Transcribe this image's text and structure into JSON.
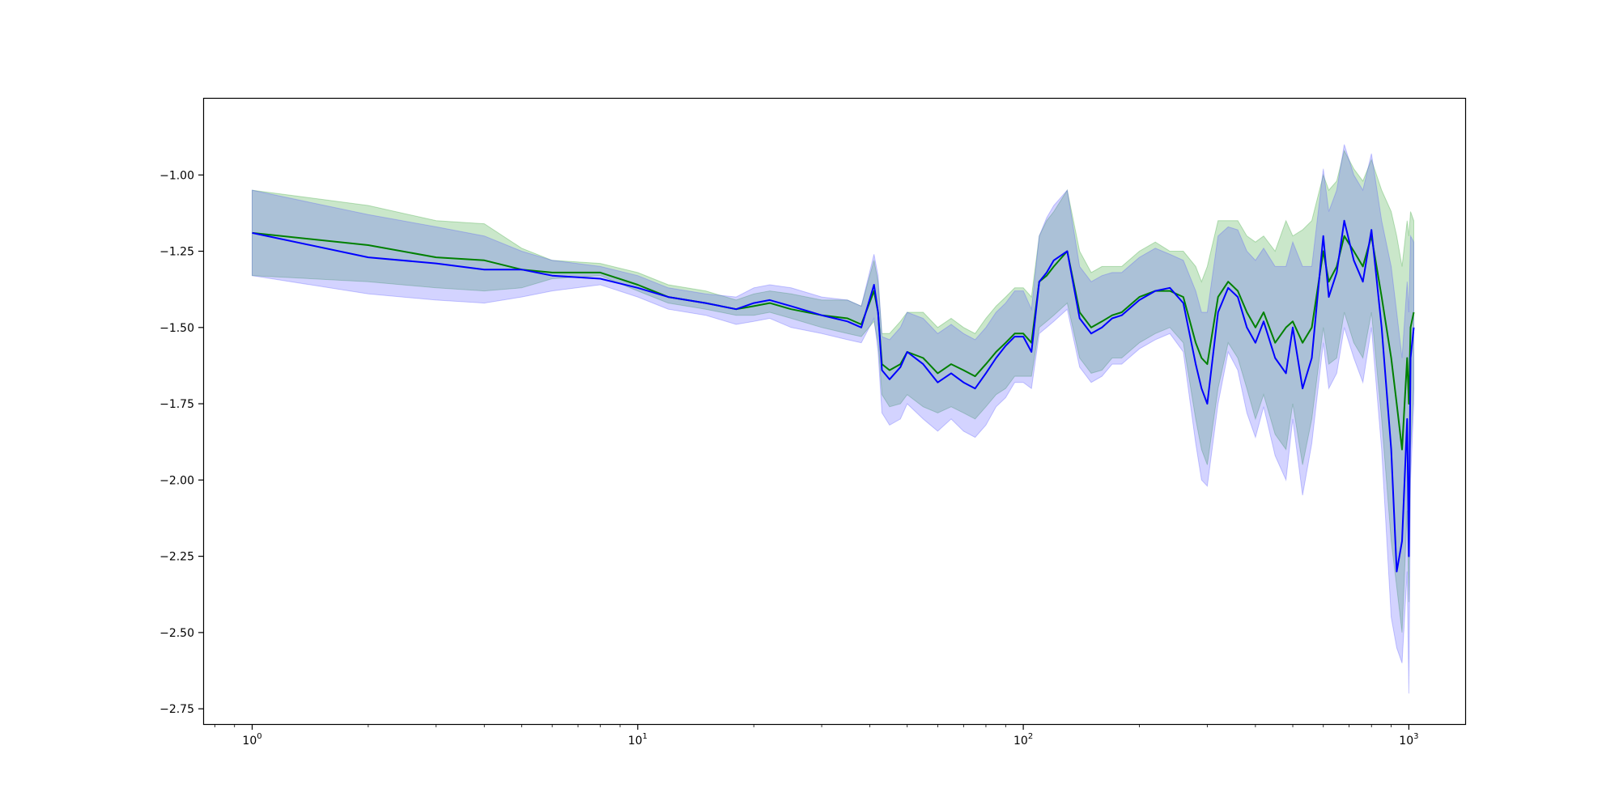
{
  "chart_data": {
    "type": "line",
    "title": "",
    "xlabel": "",
    "ylabel": "",
    "xscale": "log",
    "xlim": [
      0.75,
      1400
    ],
    "ylim": [
      -2.8,
      -0.75
    ],
    "grid": false,
    "x_ticks": [
      {
        "base": "10",
        "exp": "0",
        "value": 1
      },
      {
        "base": "10",
        "exp": "1",
        "value": 10
      },
      {
        "base": "10",
        "exp": "2",
        "value": 100
      },
      {
        "base": "10",
        "exp": "3",
        "value": 1000
      }
    ],
    "y_ticks": [
      {
        "label": "−1.00",
        "value": -1.0
      },
      {
        "label": "−1.25",
        "value": -1.25
      },
      {
        "label": "−1.50",
        "value": -1.5
      },
      {
        "label": "−1.75",
        "value": -1.75
      },
      {
        "label": "−2.00",
        "value": -2.0
      },
      {
        "label": "−2.25",
        "value": -2.25
      },
      {
        "label": "−2.50",
        "value": -2.5
      },
      {
        "label": "−2.75",
        "value": -2.75
      }
    ],
    "series": [
      {
        "color": "#008000",
        "band_color": "#2ca02c",
        "x": [
          1,
          2,
          3,
          4,
          5,
          6,
          8,
          10,
          12,
          15,
          18,
          20,
          22,
          25,
          30,
          35,
          38,
          41,
          42,
          43,
          45,
          48,
          50,
          55,
          60,
          65,
          70,
          75,
          80,
          85,
          90,
          95,
          100,
          105,
          110,
          115,
          120,
          130,
          140,
          150,
          160,
          170,
          180,
          200,
          220,
          240,
          260,
          280,
          290,
          300,
          320,
          340,
          360,
          380,
          400,
          420,
          450,
          480,
          500,
          530,
          560,
          600,
          620,
          650,
          680,
          720,
          760,
          800,
          850,
          900,
          930,
          960,
          990,
          1000,
          1010,
          1030
        ],
        "values": [
          -1.19,
          -1.23,
          -1.27,
          -1.28,
          -1.31,
          -1.32,
          -1.32,
          -1.36,
          -1.4,
          -1.42,
          -1.44,
          -1.43,
          -1.42,
          -1.44,
          -1.46,
          -1.47,
          -1.49,
          -1.38,
          -1.45,
          -1.62,
          -1.64,
          -1.62,
          -1.58,
          -1.6,
          -1.65,
          -1.62,
          -1.64,
          -1.66,
          -1.62,
          -1.58,
          -1.55,
          -1.52,
          -1.52,
          -1.55,
          -1.35,
          -1.33,
          -1.3,
          -1.25,
          -1.45,
          -1.5,
          -1.48,
          -1.46,
          -1.45,
          -1.4,
          -1.38,
          -1.38,
          -1.4,
          -1.55,
          -1.6,
          -1.62,
          -1.4,
          -1.35,
          -1.38,
          -1.45,
          -1.5,
          -1.45,
          -1.55,
          -1.5,
          -1.48,
          -1.55,
          -1.5,
          -1.25,
          -1.35,
          -1.3,
          -1.2,
          -1.25,
          -1.3,
          -1.2,
          -1.4,
          -1.6,
          -1.75,
          -1.9,
          -1.6,
          -1.75,
          -1.5,
          -1.45
        ],
        "lower": [
          -1.33,
          -1.35,
          -1.37,
          -1.38,
          -1.37,
          -1.34,
          -1.33,
          -1.38,
          -1.42,
          -1.44,
          -1.46,
          -1.46,
          -1.45,
          -1.47,
          -1.5,
          -1.52,
          -1.53,
          -1.48,
          -1.55,
          -1.72,
          -1.76,
          -1.75,
          -1.72,
          -1.76,
          -1.78,
          -1.76,
          -1.78,
          -1.8,
          -1.76,
          -1.72,
          -1.7,
          -1.66,
          -1.66,
          -1.66,
          -1.5,
          -1.48,
          -1.46,
          -1.42,
          -1.6,
          -1.65,
          -1.64,
          -1.6,
          -1.6,
          -1.55,
          -1.52,
          -1.5,
          -1.55,
          -1.8,
          -1.9,
          -1.95,
          -1.7,
          -1.55,
          -1.6,
          -1.7,
          -1.8,
          -1.72,
          -1.85,
          -1.9,
          -1.75,
          -1.95,
          -1.8,
          -1.5,
          -1.62,
          -1.6,
          -1.45,
          -1.55,
          -1.6,
          -1.45,
          -1.8,
          -2.2,
          -2.35,
          -2.5,
          -2.1,
          -2.4,
          -1.9,
          -1.7
        ],
        "upper": [
          -1.05,
          -1.1,
          -1.15,
          -1.16,
          -1.24,
          -1.28,
          -1.29,
          -1.32,
          -1.36,
          -1.38,
          -1.41,
          -1.39,
          -1.38,
          -1.39,
          -1.41,
          -1.41,
          -1.43,
          -1.28,
          -1.35,
          -1.52,
          -1.52,
          -1.48,
          -1.45,
          -1.45,
          -1.5,
          -1.47,
          -1.5,
          -1.52,
          -1.47,
          -1.43,
          -1.4,
          -1.37,
          -1.37,
          -1.4,
          -1.2,
          -1.15,
          -1.12,
          -1.05,
          -1.25,
          -1.32,
          -1.3,
          -1.3,
          -1.3,
          -1.25,
          -1.22,
          -1.25,
          -1.25,
          -1.3,
          -1.35,
          -1.3,
          -1.15,
          -1.15,
          -1.15,
          -1.2,
          -1.22,
          -1.2,
          -1.25,
          -1.15,
          -1.2,
          -1.18,
          -1.15,
          -1.0,
          -1.05,
          -1.02,
          -0.92,
          -0.98,
          -1.02,
          -0.95,
          -1.05,
          -1.12,
          -1.2,
          -1.3,
          -1.15,
          -1.2,
          -1.12,
          -1.15
        ]
      },
      {
        "color": "#0000ff",
        "band_color": "#4f4fff",
        "x": [
          1,
          2,
          3,
          4,
          5,
          6,
          8,
          10,
          12,
          15,
          18,
          20,
          22,
          25,
          30,
          35,
          38,
          41,
          42,
          43,
          45,
          48,
          50,
          55,
          60,
          65,
          70,
          75,
          80,
          85,
          90,
          95,
          100,
          105,
          110,
          115,
          120,
          130,
          140,
          150,
          160,
          170,
          180,
          200,
          220,
          240,
          260,
          280,
          290,
          300,
          320,
          340,
          360,
          380,
          400,
          420,
          450,
          480,
          500,
          530,
          560,
          600,
          620,
          650,
          680,
          720,
          760,
          800,
          850,
          900,
          930,
          960,
          990,
          1000,
          1010,
          1030
        ],
        "values": [
          -1.19,
          -1.27,
          -1.29,
          -1.31,
          -1.31,
          -1.33,
          -1.34,
          -1.37,
          -1.4,
          -1.42,
          -1.44,
          -1.42,
          -1.41,
          -1.43,
          -1.46,
          -1.48,
          -1.5,
          -1.36,
          -1.45,
          -1.64,
          -1.67,
          -1.63,
          -1.58,
          -1.62,
          -1.68,
          -1.65,
          -1.68,
          -1.7,
          -1.65,
          -1.6,
          -1.56,
          -1.53,
          -1.53,
          -1.58,
          -1.35,
          -1.32,
          -1.28,
          -1.25,
          -1.47,
          -1.52,
          -1.5,
          -1.47,
          -1.46,
          -1.41,
          -1.38,
          -1.37,
          -1.42,
          -1.62,
          -1.7,
          -1.75,
          -1.45,
          -1.37,
          -1.4,
          -1.5,
          -1.55,
          -1.48,
          -1.6,
          -1.65,
          -1.5,
          -1.7,
          -1.6,
          -1.2,
          -1.4,
          -1.32,
          -1.15,
          -1.28,
          -1.35,
          -1.18,
          -1.5,
          -1.9,
          -2.3,
          -2.2,
          -1.8,
          -2.25,
          -1.6,
          -1.5
        ],
        "lower": [
          -1.33,
          -1.39,
          -1.41,
          -1.42,
          -1.4,
          -1.38,
          -1.36,
          -1.4,
          -1.44,
          -1.46,
          -1.49,
          -1.48,
          -1.47,
          -1.5,
          -1.52,
          -1.54,
          -1.55,
          -1.47,
          -1.58,
          -1.78,
          -1.82,
          -1.8,
          -1.75,
          -1.8,
          -1.84,
          -1.8,
          -1.84,
          -1.86,
          -1.82,
          -1.76,
          -1.73,
          -1.68,
          -1.68,
          -1.7,
          -1.52,
          -1.5,
          -1.48,
          -1.44,
          -1.63,
          -1.68,
          -1.66,
          -1.62,
          -1.62,
          -1.57,
          -1.54,
          -1.52,
          -1.58,
          -1.88,
          -2.0,
          -2.02,
          -1.75,
          -1.58,
          -1.64,
          -1.78,
          -1.86,
          -1.76,
          -1.92,
          -2.0,
          -1.8,
          -2.05,
          -1.88,
          -1.55,
          -1.7,
          -1.65,
          -1.5,
          -1.6,
          -1.68,
          -1.5,
          -1.9,
          -2.45,
          -2.55,
          -2.6,
          -2.3,
          -2.7,
          -2.0,
          -1.75
        ],
        "upper": [
          -1.05,
          -1.13,
          -1.17,
          -1.2,
          -1.25,
          -1.28,
          -1.3,
          -1.33,
          -1.37,
          -1.39,
          -1.4,
          -1.37,
          -1.36,
          -1.37,
          -1.4,
          -1.41,
          -1.43,
          -1.26,
          -1.33,
          -1.53,
          -1.54,
          -1.5,
          -1.45,
          -1.47,
          -1.52,
          -1.49,
          -1.52,
          -1.54,
          -1.5,
          -1.45,
          -1.42,
          -1.38,
          -1.38,
          -1.44,
          -1.2,
          -1.14,
          -1.1,
          -1.05,
          -1.3,
          -1.35,
          -1.33,
          -1.32,
          -1.32,
          -1.27,
          -1.24,
          -1.26,
          -1.28,
          -1.38,
          -1.45,
          -1.45,
          -1.2,
          -1.17,
          -1.18,
          -1.25,
          -1.28,
          -1.24,
          -1.3,
          -1.3,
          -1.22,
          -1.3,
          -1.3,
          -0.98,
          -1.12,
          -1.05,
          -0.9,
          -1.0,
          -1.05,
          -0.93,
          -1.15,
          -1.3,
          -1.45,
          -1.6,
          -1.35,
          -1.45,
          -1.2,
          -1.22
        ]
      }
    ]
  }
}
